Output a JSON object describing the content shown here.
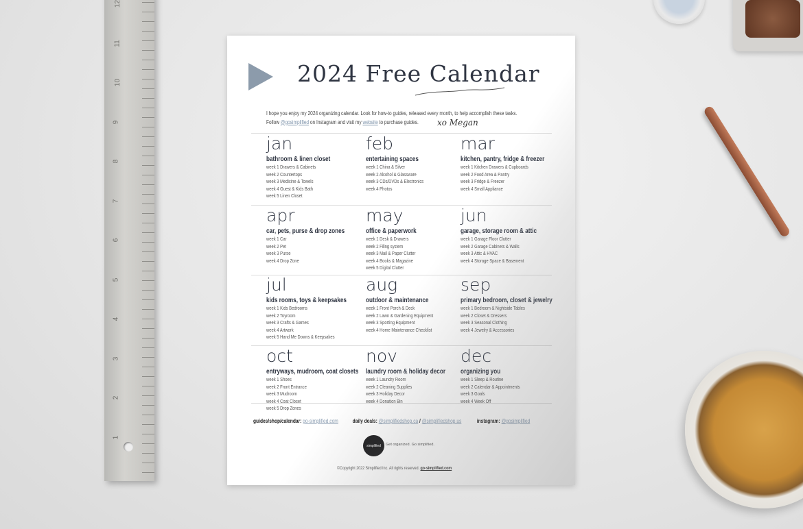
{
  "ruler": {
    "numbers": [
      "12",
      "11",
      "10",
      "9",
      "8",
      "7",
      "6",
      "5",
      "4",
      "3",
      "2",
      "1"
    ]
  },
  "header": {
    "title": "2024 Free Calendar",
    "intro_line1": "I hope you enjoy my 2024 organizing calendar. Look for how-to guides, released every month, to help accomplish these tasks.",
    "intro_follow": "Follow ",
    "instagram_handle": "@gosimplified",
    "intro_mid": " on Instagram and visit my ",
    "website_link": "website",
    "intro_end": " to purchase guides.",
    "signature": "xo Megan"
  },
  "months": [
    {
      "name": "jan",
      "theme": "bathroom & linen closet",
      "weeks": [
        "week 1  Drawers & Cabinets",
        "week 2  Countertops",
        "week 3  Medicine & Towels",
        "week 4  Guest & Kids Bath",
        "week 5  Linen Closet"
      ]
    },
    {
      "name": "feb",
      "theme": "entertaining spaces",
      "weeks": [
        "week 1  China & Silver",
        "week 2  Alcohol & Glassware",
        "week 3  CDs/DVDs & Electronics",
        "week 4  Photos"
      ]
    },
    {
      "name": "mar",
      "theme": "kitchen, pantry, fridge & freezer",
      "weeks": [
        "week 1  Kitchen Drawers & Cupboards",
        "week 2  Food Area & Pantry",
        "week 3  Fridge & Freezer",
        "week 4  Small Appliance"
      ]
    },
    {
      "name": "apr",
      "theme": "car, pets, purse & drop zones",
      "weeks": [
        "week 1  Car",
        "week 2  Pet",
        "week 3  Purse",
        "week 4  Drop Zone"
      ]
    },
    {
      "name": "may",
      "theme": "office & paperwork",
      "weeks": [
        "week 1  Desk & Drawers",
        "week 2  Filing system",
        "week 3  Mail & Paper Clutter",
        "week 4  Books & Magazine",
        "week 5  Digital Clutter"
      ]
    },
    {
      "name": "jun",
      "theme": "garage, storage room & attic",
      "weeks": [
        "week 1  Garage Floor Clutter",
        "week 2  Garage Cabinets & Walls",
        "week 3  Attic & HVAC",
        "week 4  Storage Space & Basement"
      ]
    },
    {
      "name": "jul",
      "theme": "kids rooms, toys & keepsakes",
      "weeks": [
        "week 1  Kids Bedrooms",
        "week 2  Toyroom",
        "week 3  Crafts & Games",
        "week 4  Artwork",
        "week 5  Hand Me Downs & Keepsakes"
      ]
    },
    {
      "name": "aug",
      "theme": "outdoor & maintenance",
      "weeks": [
        "week 1  Front Porch & Deck",
        "week 2  Lawn & Gardening Equipment",
        "week 3  Sporting Equipment",
        "week 4  Home Maintenance Checklist"
      ]
    },
    {
      "name": "sep",
      "theme": "primary bedroom, closet & jewelry",
      "weeks": [
        "week 1  Bedroom & Nightside Tables",
        "week 2  Closet & Dressers",
        "week 3  Seasonal Clothing",
        "week 4  Jewelry & Accessories"
      ]
    },
    {
      "name": "oct",
      "theme": "entryways, mudroom, coat closets",
      "weeks": [
        "week 1  Shoes",
        "week 2  Front Entrance",
        "week 3  Mudroom",
        "week 4  Coat Closet",
        "week 5  Drop Zones"
      ]
    },
    {
      "name": "nov",
      "theme": "laundry room & holiday decor",
      "weeks": [
        "week 1  Laundry Room",
        "week 2  Cleaning Supplies",
        "week 3  Holiday Decor",
        "week 4  Donation Bin"
      ]
    },
    {
      "name": "dec",
      "theme": "organizing you",
      "weeks": [
        "week 1  Sleep & Routine",
        "week 2  Calendar & Appointments",
        "week 3  Goals",
        "week 4  Week Off"
      ]
    }
  ],
  "footer": {
    "guides_label": "guides/shop/calendar: ",
    "guides_link": "go-simplified.com",
    "deals_label": "daily deals: ",
    "deals_link1": "@simplifiedshop.ca",
    "deals_sep": " / ",
    "deals_link2": "@simplifiedshop.us",
    "instagram_label": "instagram: ",
    "instagram_link": "@gosimplified",
    "logo_text": "simplified",
    "tagline": "Get organized. Go simplified.",
    "copyright": "©Copyright 2022 Simplified Inc. All rights reserved. ",
    "copyright_link": "go-simplified.com"
  },
  "colors": {
    "accent": "#8c9bab",
    "text": "#2f3542",
    "link": "#7f94ab"
  }
}
